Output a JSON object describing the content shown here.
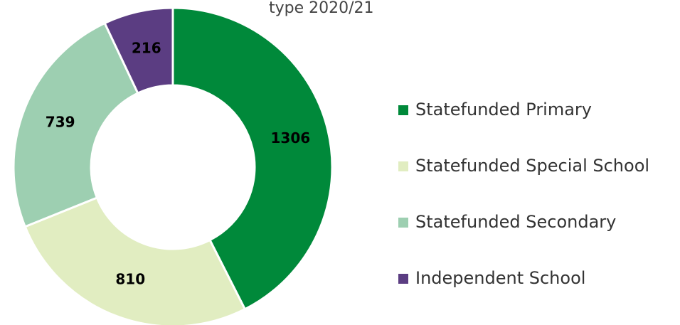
{
  "chart_data": {
    "type": "donut",
    "title": "type 2020/21",
    "categories": [
      "Statefunded Primary",
      "Statefunded Special School",
      "Statefunded Secondary",
      "Independent School"
    ],
    "values": [
      1306,
      810,
      739,
      216
    ],
    "colors": [
      "#00893a",
      "#e1edc1",
      "#9dcfb1",
      "#5b3d82"
    ],
    "legend": "right"
  }
}
